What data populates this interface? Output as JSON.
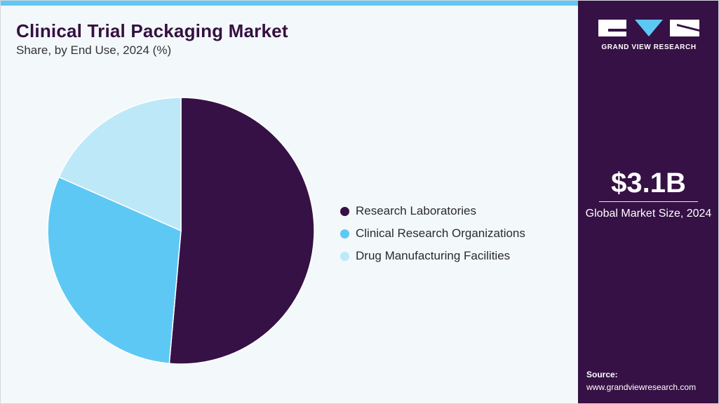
{
  "header": {
    "title": "Clinical Trial Packaging Market",
    "subtitle": "Share, by End Use, 2024 (%)"
  },
  "chart_data": {
    "type": "pie",
    "categories": [
      "Research Laboratories",
      "Clinical Research Organizations",
      "Drug Manufacturing Facilities"
    ],
    "values": [
      51.4,
      30.2,
      18.4
    ],
    "colors": [
      "#361145",
      "#5ec8f4",
      "#bde8f8"
    ],
    "legend_position": "right"
  },
  "sidebar": {
    "brand": "GRAND VIEW RESEARCH",
    "kpi_value": "$3.1B",
    "kpi_label": "Global Market Size, 2024",
    "source_title": "Source:",
    "source_url": "www.grandviewresearch.com"
  }
}
